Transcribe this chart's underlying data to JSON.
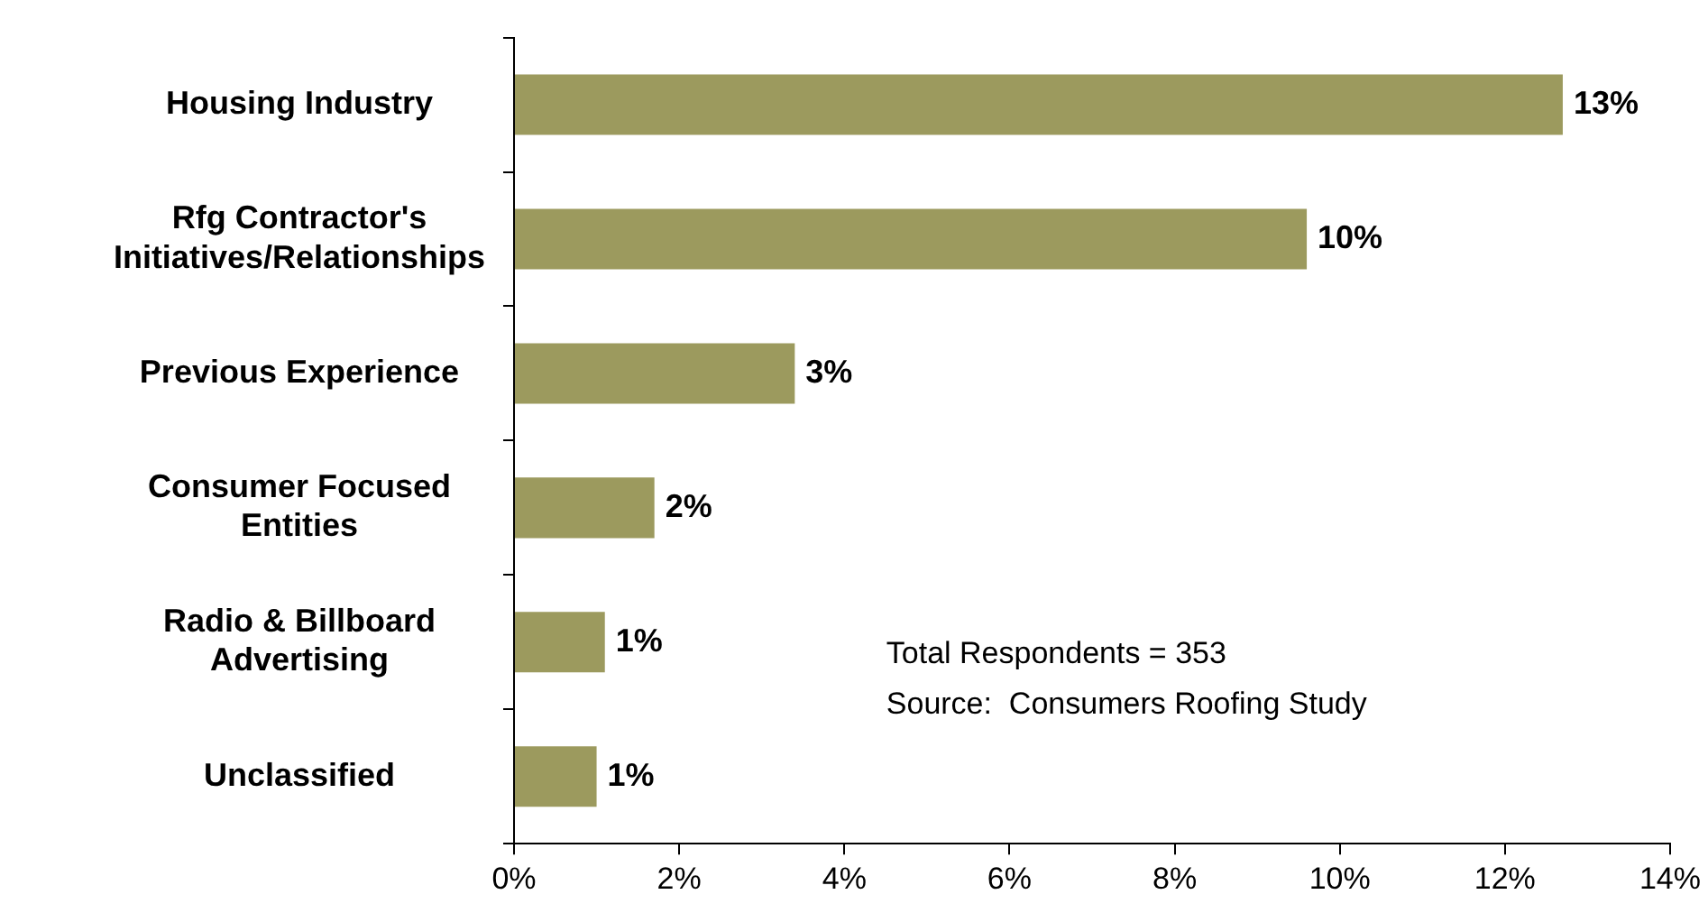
{
  "chart_data": {
    "type": "bar",
    "orientation": "horizontal",
    "categories": [
      "Housing Industry",
      "Rfg Contractor's Initiatives/Relationships",
      "Previous Experience",
      "Consumer Focused Entities",
      "Radio & Billboard Advertising",
      "Unclassified"
    ],
    "values": [
      12.7,
      9.6,
      3.4,
      1.7,
      1.1,
      1.0
    ],
    "value_labels": [
      "13%",
      "10%",
      "3%",
      "2%",
      "1%",
      "1%"
    ],
    "color": "#9c9a5e",
    "xlim": [
      0,
      14
    ],
    "xticks": [
      {
        "value": 0,
        "label": "0%"
      },
      {
        "value": 2,
        "label": "2%"
      },
      {
        "value": 4,
        "label": "4%"
      },
      {
        "value": 6,
        "label": "6%"
      },
      {
        "value": 8,
        "label": "8%"
      },
      {
        "value": 10,
        "label": "10%"
      },
      {
        "value": 12,
        "label": "12%"
      },
      {
        "value": 14,
        "label": "14%"
      }
    ],
    "grid": false,
    "legend": false,
    "annotations": [
      "Total Respondents = 353",
      "Source:  Consumers Roofing Study"
    ]
  }
}
